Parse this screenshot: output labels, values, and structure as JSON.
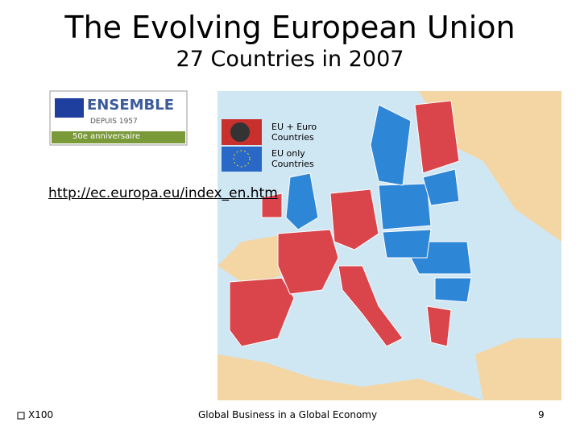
{
  "header": {
    "title": "The Evolving European Union",
    "subtitle": "27 Countries in 2007"
  },
  "logo": {
    "brand": "ENSEMBLE",
    "since": "DEPUIS 1957",
    "anniversary": "50e anniversaire"
  },
  "legend": {
    "euro": "EU + Euro Countries",
    "eu_only": "EU only Countries"
  },
  "link": "http://ec.europa.eu/index_en.htm",
  "footer": {
    "left": "X100",
    "center": "Global Business in a Global Economy",
    "page": "9"
  }
}
